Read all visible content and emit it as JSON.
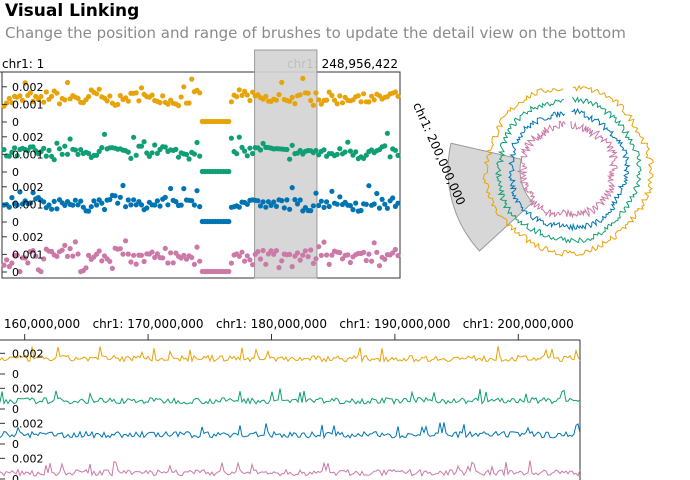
{
  "title": "Visual Linking",
  "subtitle": "Change the position and range of brushes to update the detail view on the bottom",
  "colors": {
    "series": [
      "#e7a40a",
      "#109e74",
      "#0074b3",
      "#cb79a7"
    ],
    "brush": "#d3d3d3",
    "axis": "#333333"
  },
  "chart_data": [
    {
      "type": "scatter",
      "id": "overview-track",
      "x_range": [
        1,
        248956422
      ],
      "axis_labels": [
        "chr1: 1",
        "chr1: 248,956,422"
      ],
      "y_range": [
        0,
        0.0025
      ],
      "y_tick_labels": [
        "0.002",
        "0.001",
        "0"
      ],
      "series": [
        {
          "baseline": [
            0.0012,
            0.0013,
            0.0014,
            0.0012,
            0.0015,
            0.0013,
            0.0014,
            0.0012,
            0.0016,
            0.0013,
            0.0012,
            0.0014,
            0.0015,
            0.0013,
            0.0014,
            0.0012,
            0.0013,
            0.0015,
            0.0014,
            0.0012,
            0.0013,
            0.0016,
            0.0014,
            0.0013,
            0.0012,
            0.0014,
            0.0013,
            0.0015,
            0.0012,
            0.0014,
            0.0013,
            0.0014,
            0.0012,
            0.0013,
            0.0014,
            0.0015
          ]
        },
        {
          "baseline": [
            0.001,
            0.0011,
            0.0012,
            0.0011,
            0.001,
            0.0012,
            0.0011,
            0.001,
            0.0011,
            0.0012,
            0.0011,
            0.001,
            0.0012,
            0.0011,
            0.0013,
            0.0011,
            0.001,
            0.0012,
            0.0011,
            0.0012,
            0.001,
            0.0011,
            0.0012,
            0.0014,
            0.0012,
            0.0011,
            0.001,
            0.0012,
            0.0011,
            0.001,
            0.0011,
            0.0012,
            0.001,
            0.0011,
            0.0012,
            0.0011
          ]
        },
        {
          "baseline": [
            0.0008,
            0.0009,
            0.001,
            0.0011,
            0.001,
            0.0012,
            0.001,
            0.0009,
            0.0011,
            0.001,
            0.0012,
            0.0011,
            0.0009,
            0.001,
            0.0011,
            0.0012,
            0.001,
            0.0011,
            0.0009,
            0.001,
            0.0011,
            0.001,
            0.0012,
            0.001,
            0.0009,
            0.0011,
            0.001,
            0.0009,
            0.001,
            0.0011,
            0.0012,
            0.001,
            0.0009,
            0.0011,
            0.001,
            0.0011
          ]
        },
        {
          "baseline": [
            0.0006,
            0.0008,
            0.001,
            0.0007,
            0.0009,
            0.0011,
            0.0008,
            0.0007,
            0.001,
            0.0009,
            0.0011,
            0.0008,
            0.0007,
            0.0009,
            0.0012,
            0.0008,
            0.001,
            0.0007,
            0.0009,
            0.0011,
            0.0008,
            0.001,
            0.0009,
            0.0007,
            0.001,
            0.0008,
            0.0009,
            0.0011,
            0.0007,
            0.001,
            0.0009,
            0.0008,
            0.001,
            0.0009,
            0.0008,
            0.001
          ]
        }
      ],
      "gap_range": [
        125000000,
        143000000
      ],
      "brush_range": [
        158000000,
        197000000
      ]
    },
    {
      "type": "area",
      "id": "circular-overview",
      "layout": "circular",
      "x_range": [
        1,
        248956422
      ],
      "tick_labels": [
        "chr1: 200,000,000"
      ],
      "brush_range": [
        158000000,
        197000000
      ]
    },
    {
      "type": "line",
      "id": "detail-track",
      "x_domain": [
        158000000,
        205000000
      ],
      "x_tick_values": [
        160000000,
        170000000,
        180000000,
        190000000,
        200000000
      ],
      "x_tick_labels": [
        "chr1: 160,000,000",
        "chr1: 170,000,000",
        "chr1: 180,000,000",
        "chr1: 190,000,000",
        "chr1: 200,000,000"
      ],
      "y_range": [
        0,
        0.003
      ],
      "y_tick_labels": [
        "0.002",
        "0"
      ],
      "series": [
        {
          "baseline": 0.0015
        },
        {
          "baseline": 0.0008
        },
        {
          "baseline": 0.0009
        },
        {
          "baseline": 0.0006
        }
      ]
    }
  ]
}
